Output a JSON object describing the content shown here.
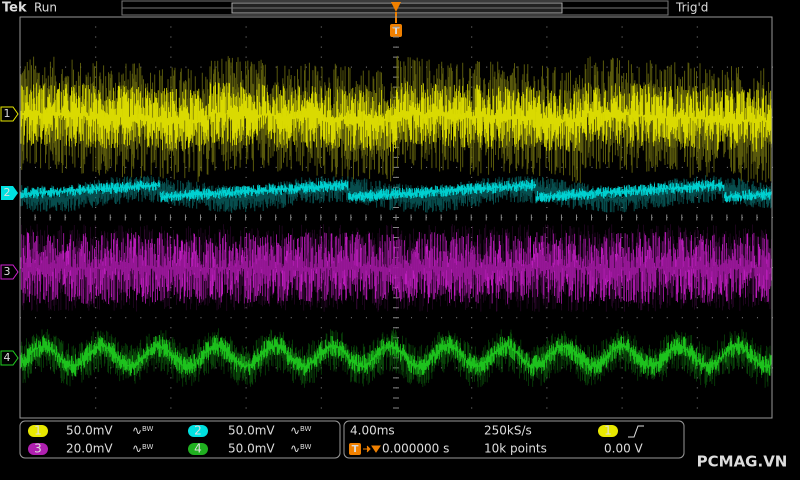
{
  "header": {
    "brand": "Tek",
    "status": "Run",
    "trigger_status": "Trig'd",
    "trigger_marker": "T"
  },
  "channel_markers": [
    "1",
    "2",
    "3",
    "4"
  ],
  "channels": [
    {
      "number": "1",
      "scale": "50.0mV",
      "bw": "BW"
    },
    {
      "number": "2",
      "scale": "50.0mV",
      "bw": "BW"
    },
    {
      "number": "3",
      "scale": "20.0mV",
      "bw": "BW"
    },
    {
      "number": "4",
      "scale": "50.0mV",
      "bw": "BW"
    }
  ],
  "timebase": {
    "scale": "4.00ms",
    "sample_rate": "250kS/s",
    "trigger_icon": "T",
    "delay": "0.000000 s",
    "record_length": "10k points"
  },
  "trigger": {
    "source": "1",
    "level": "0.00 V"
  },
  "watermark": "PCMAG.VN"
}
